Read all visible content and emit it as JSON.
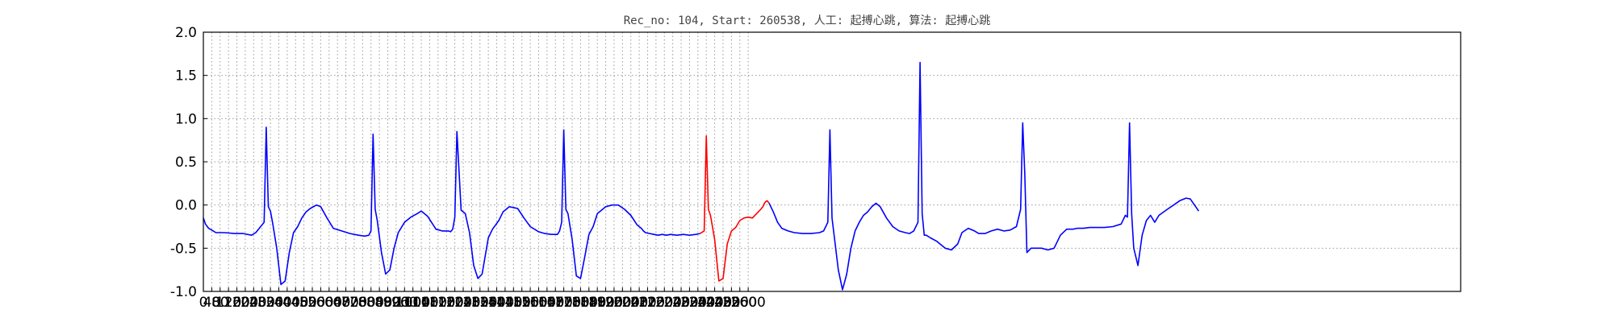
{
  "chart_data": {
    "type": "line",
    "title": "Rec_no: 104, Start: 260538, 人工: 起搏心跳, 算法: 起搏心跳",
    "xlabel": "",
    "ylabel": "",
    "xlim": [
      0,
      6000
    ],
    "ylim": [
      -1.0,
      2.0
    ],
    "grid": true,
    "y_ticks": [
      "2.0",
      "1.5",
      "1.0",
      "0.5",
      "0.0",
      "-0.5",
      "-1.0"
    ],
    "x_ticks": [
      "0",
      "40",
      "80",
      "120",
      "160",
      "200",
      "240",
      "280",
      "320",
      "360",
      "400",
      "440",
      "480",
      "520",
      "560",
      "600",
      "640",
      "680",
      "720",
      "760",
      "800",
      "840",
      "880",
      "920",
      "960",
      "1000",
      "1040",
      "1080",
      "1120",
      "1160",
      "1200",
      "1240",
      "1280",
      "1320",
      "1360",
      "1400",
      "1440",
      "1480",
      "1520",
      "1560",
      "1600",
      "1640",
      "1680",
      "1720",
      "1760",
      "1800",
      "1840",
      "1880",
      "1920",
      "1960",
      "2000",
      "2040",
      "2080",
      "2120",
      "2160",
      "2200",
      "2240",
      "2280",
      "2320",
      "2360",
      "2400",
      "2440",
      "2480",
      "2520",
      "2560",
      "2600"
    ],
    "colors": {
      "normal": "#0000ff",
      "highlight": "#ff0000"
    },
    "series": [
      {
        "color": "normal",
        "x": [
          0,
          10,
          25,
          40,
          60,
          100,
          150,
          190,
          230,
          250,
          290,
          300,
          310,
          320,
          330,
          350,
          370,
          390,
          410,
          430,
          450,
          470,
          490,
          510,
          540,
          560,
          590,
          620,
          660,
          700,
          740,
          770,
          790,
          800,
          810,
          820,
          830,
          850,
          870,
          890,
          910,
          930,
          960,
          990,
          1020,
          1040,
          1070,
          1110,
          1140,
          1170,
          1180,
          1190,
          1200,
          1210,
          1230,
          1250,
          1270,
          1290,
          1310,
          1330,
          1360,
          1380,
          1410,
          1430,
          1460,
          1500,
          1530,
          1560,
          1580,
          1600,
          1630,
          1660,
          1690,
          1700,
          1710,
          1720,
          1730,
          1740,
          1760,
          1780,
          1800,
          1820,
          1840,
          1860,
          1880,
          1920,
          1950,
          1980,
          2010,
          2040,
          2070,
          2080,
          2090,
          2100,
          2110,
          2130,
          2150,
          2170,
          2190,
          2210,
          2230,
          2260,
          2290,
          2320,
          2350,
          2370
        ],
        "y": [
          -0.15,
          -0.22,
          -0.27,
          -0.29,
          -0.32,
          -0.32,
          -0.33,
          -0.33,
          -0.35,
          -0.32,
          -0.2,
          0.9,
          -0.02,
          -0.07,
          -0.2,
          -0.5,
          -0.92,
          -0.88,
          -0.55,
          -0.32,
          -0.25,
          -0.15,
          -0.08,
          -0.04,
          0.0,
          -0.02,
          -0.15,
          -0.27,
          -0.3,
          -0.33,
          -0.35,
          -0.36,
          -0.35,
          -0.3,
          0.82,
          -0.05,
          -0.18,
          -0.55,
          -0.8,
          -0.75,
          -0.5,
          -0.32,
          -0.2,
          -0.14,
          -0.1,
          -0.07,
          -0.13,
          -0.28,
          -0.3,
          -0.3,
          -0.31,
          -0.28,
          -0.14,
          0.85,
          -0.06,
          -0.1,
          -0.32,
          -0.7,
          -0.85,
          -0.8,
          -0.38,
          -0.28,
          -0.18,
          -0.08,
          -0.02,
          -0.04,
          -0.15,
          -0.25,
          -0.28,
          -0.31,
          -0.33,
          -0.34,
          -0.34,
          -0.3,
          -0.2,
          0.87,
          -0.05,
          -0.1,
          -0.4,
          -0.82,
          -0.85,
          -0.6,
          -0.34,
          -0.25,
          -0.1,
          -0.02,
          -0.0,
          0.0,
          -0.05,
          -0.12,
          -0.23,
          -0.25,
          -0.27,
          -0.3,
          -0.32,
          -0.33,
          -0.34,
          -0.35,
          -0.34,
          -0.35,
          -0.34,
          -0.35,
          -0.34,
          -0.35,
          -0.34,
          -0.33
        ]
      },
      {
        "color": "highlight",
        "x": [
          2370,
          2390,
          2400,
          2410,
          2420,
          2440,
          2460,
          2480,
          2500,
          2520,
          2540,
          2560,
          2580,
          2600,
          2620,
          2640,
          2660,
          2670,
          2680,
          2690,
          2700
        ],
        "y": [
          -0.33,
          -0.3,
          0.8,
          -0.05,
          -0.12,
          -0.4,
          -0.88,
          -0.85,
          -0.45,
          -0.3,
          -0.26,
          -0.18,
          -0.15,
          -0.14,
          -0.15,
          -0.1,
          -0.05,
          -0.02,
          0.03,
          0.05,
          0.02
        ]
      },
      {
        "color": "normal",
        "x": [
          2700,
          2720,
          2740,
          2760,
          2790,
          2820,
          2860,
          2900,
          2940,
          2960,
          2980,
          2990,
          3000,
          3010,
          3030,
          3050,
          3070,
          3090,
          3110,
          3130,
          3150,
          3170,
          3190,
          3210,
          3230,
          3260,
          3290,
          3320,
          3350,
          3370,
          3390,
          3410,
          3420,
          3430,
          3440,
          3450,
          3470,
          3500,
          3540,
          3570,
          3600,
          3620,
          3650,
          3680,
          3700,
          3730,
          3760,
          3790,
          3820,
          3850,
          3880,
          3900,
          3910,
          3920,
          3930,
          3950,
          3970,
          4000,
          4030,
          4060,
          4090,
          4120,
          4150,
          4170,
          4200,
          4230,
          4260,
          4300,
          4340,
          4380,
          4400,
          4410,
          4420,
          4430,
          4440,
          4460,
          4480,
          4500,
          4520,
          4540,
          4560,
          4600,
          4630,
          4660,
          4690,
          4710,
          4730,
          4750
        ],
        "y": [
          0.02,
          -0.08,
          -0.2,
          -0.27,
          -0.3,
          -0.32,
          -0.33,
          -0.33,
          -0.32,
          -0.3,
          -0.2,
          0.87,
          -0.15,
          -0.35,
          -0.75,
          -0.98,
          -0.8,
          -0.5,
          -0.3,
          -0.2,
          -0.12,
          -0.08,
          -0.02,
          0.02,
          -0.02,
          -0.15,
          -0.25,
          -0.3,
          -0.32,
          -0.33,
          -0.3,
          -0.2,
          1.65,
          -0.1,
          -0.35,
          -0.35,
          -0.38,
          -0.42,
          -0.5,
          -0.52,
          -0.45,
          -0.32,
          -0.27,
          -0.3,
          -0.33,
          -0.33,
          -0.3,
          -0.28,
          -0.3,
          -0.29,
          -0.25,
          -0.05,
          0.95,
          0.35,
          -0.55,
          -0.5,
          -0.5,
          -0.5,
          -0.52,
          -0.5,
          -0.35,
          -0.28,
          -0.28,
          -0.27,
          -0.27,
          -0.26,
          -0.26,
          -0.26,
          -0.25,
          -0.22,
          -0.12,
          -0.14,
          0.95,
          -0.1,
          -0.5,
          -0.7,
          -0.35,
          -0.18,
          -0.12,
          -0.2,
          -0.12,
          -0.05,
          0.0,
          0.05,
          0.08,
          0.07,
          0.0,
          -0.07
        ]
      }
    ]
  }
}
